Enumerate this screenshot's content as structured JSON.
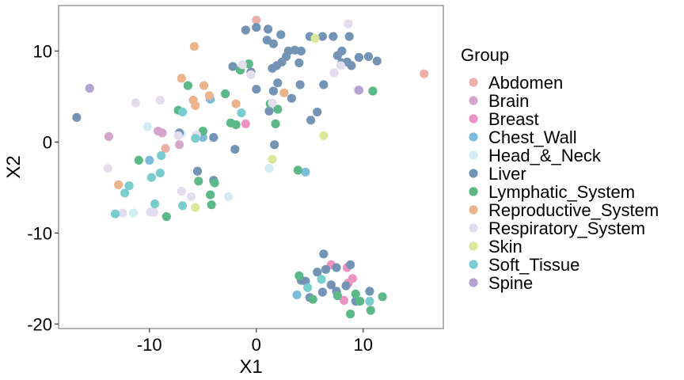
{
  "chart_data": {
    "type": "scatter",
    "xlabel": "X1",
    "ylabel": "X2",
    "xlim": [
      -18.5,
      17.5
    ],
    "ylim": [
      -20.5,
      15.0
    ],
    "x_ticks": [
      -10,
      0,
      10
    ],
    "y_ticks": [
      -20,
      -10,
      0,
      10
    ],
    "grid": false,
    "legend": {
      "title": "Group",
      "position": "right"
    },
    "series": [
      {
        "name": "Abdomen",
        "color": "#EBB0A6",
        "points": [
          [
            0.0,
            13.4
          ],
          [
            15.7,
            7.5
          ],
          [
            -8.5,
            -0.7
          ]
        ]
      },
      {
        "name": "Brain",
        "color": "#D4A6CC",
        "points": [
          [
            -13.8,
            0.6
          ],
          [
            -9.2,
            1.2
          ],
          [
            -8.8,
            1.0
          ],
          [
            -7.2,
            -0.3
          ]
        ]
      },
      {
        "name": "Breast",
        "color": "#EE92C3",
        "points": [
          [
            -1.0,
            2.0
          ],
          [
            7.0,
            -13.5
          ],
          [
            8.5,
            -13.8
          ],
          [
            9.0,
            -15.0
          ],
          [
            8.2,
            -17.4
          ],
          [
            8.6,
            -15.5
          ]
        ]
      },
      {
        "name": "Chest_Wall",
        "color": "#7BBCDB",
        "points": [
          [
            -4.3,
            4.7
          ],
          [
            -5.0,
            0.5
          ],
          [
            4.6,
            -3.3
          ],
          [
            3.8,
            -16.8
          ],
          [
            -10.0,
            -2.0
          ]
        ]
      },
      {
        "name": "Head_&_Neck",
        "color": "#D2ECF6",
        "points": [
          [
            -10.2,
            1.7
          ],
          [
            -7.0,
            0.9
          ],
          [
            -2.6,
            -6.0
          ],
          [
            1.2,
            -2.9
          ],
          [
            -11.5,
            -7.8
          ]
        ]
      },
      {
        "name": "Liver",
        "color": "#7394B4",
        "points": [
          [
            -16.8,
            2.7
          ],
          [
            -1.0,
            12.3
          ],
          [
            0.0,
            12.6
          ],
          [
            1.1,
            12.4
          ],
          [
            2.3,
            11.8
          ],
          [
            1.0,
            11.2
          ],
          [
            1.6,
            10.8
          ],
          [
            3.0,
            10.0
          ],
          [
            3.6,
            10.1
          ],
          [
            2.8,
            9.4
          ],
          [
            2.4,
            8.8
          ],
          [
            1.9,
            8.4
          ],
          [
            1.5,
            8.1
          ],
          [
            4.2,
            10.0
          ],
          [
            4.0,
            8.7
          ],
          [
            5.0,
            11.6
          ],
          [
            6.2,
            11.6
          ],
          [
            7.2,
            11.6
          ],
          [
            8.7,
            11.6
          ],
          [
            8.0,
            10.0
          ],
          [
            7.6,
            9.5
          ],
          [
            8.0,
            8.7
          ],
          [
            8.5,
            8.8
          ],
          [
            8.9,
            8.4
          ],
          [
            9.6,
            9.3
          ],
          [
            10.5,
            9.4
          ],
          [
            11.3,
            8.9
          ],
          [
            4.1,
            6.3
          ],
          [
            6.3,
            6.3
          ],
          [
            2.0,
            6.5
          ],
          [
            0.0,
            5.8
          ],
          [
            1.6,
            5.6
          ],
          [
            3.3,
            4.8
          ],
          [
            5.7,
            3.3
          ],
          [
            5.1,
            2.4
          ],
          [
            1.2,
            3.4
          ],
          [
            1.7,
            -0.3
          ],
          [
            -0.5,
            7.7
          ],
          [
            -2.2,
            8.3
          ],
          [
            -7.2,
            1.0
          ],
          [
            -4.0,
            0.5
          ],
          [
            -2.0,
            -0.8
          ],
          [
            -5.5,
            -3.2
          ],
          [
            -4.0,
            -4.2
          ],
          [
            6.3,
            -12.3
          ],
          [
            7.5,
            -13.8
          ],
          [
            6.5,
            -14.0
          ],
          [
            8.8,
            -13.5
          ],
          [
            5.7,
            -14.3
          ],
          [
            4.2,
            -15.2
          ],
          [
            4.6,
            -15.3
          ],
          [
            7.0,
            -15.7
          ],
          [
            6.2,
            -16.5
          ],
          [
            7.5,
            -16.4
          ],
          [
            8.4,
            -15.8
          ],
          [
            5.0,
            -17.1
          ],
          [
            9.3,
            -17.5
          ],
          [
            10.6,
            -16.4
          ]
        ]
      },
      {
        "name": "Lymphatic_System",
        "color": "#5CB987",
        "points": [
          [
            -0.7,
            8.6
          ],
          [
            -1.5,
            7.9
          ],
          [
            -6.4,
            6.2
          ],
          [
            -2.9,
            5.3
          ],
          [
            1.3,
            4.2
          ],
          [
            2.0,
            3.6
          ],
          [
            -7.3,
            3.5
          ],
          [
            -5.0,
            1.2
          ],
          [
            -2.4,
            2.1
          ],
          [
            -1.9,
            1.9
          ],
          [
            1.8,
            2.0
          ],
          [
            -11.0,
            -2.0
          ],
          [
            3.9,
            -3.1
          ],
          [
            -5.4,
            -4.3
          ],
          [
            -3.9,
            -4.5
          ],
          [
            -4.3,
            -5.8
          ],
          [
            -4.2,
            -6.9
          ],
          [
            -8.4,
            -8.2
          ],
          [
            4.0,
            -14.7
          ],
          [
            5.3,
            -17.3
          ],
          [
            7.6,
            -16.9
          ],
          [
            9.3,
            -16.7
          ],
          [
            9.7,
            -17.5
          ],
          [
            10.7,
            -18.5
          ],
          [
            8.8,
            -18.9
          ],
          [
            11.8,
            -17.0
          ],
          [
            10.9,
            5.6
          ]
        ]
      },
      {
        "name": "Reproductive_System",
        "color": "#EBB48C",
        "points": [
          [
            -5.8,
            10.5
          ],
          [
            -7.0,
            7.0
          ],
          [
            -4.9,
            6.2
          ],
          [
            -4.4,
            5.1
          ],
          [
            -5.9,
            4.6
          ],
          [
            -5.7,
            4.0
          ],
          [
            -1.9,
            4.2
          ],
          [
            2.6,
            5.4
          ],
          [
            -12.9,
            -4.7
          ]
        ]
      },
      {
        "name": "Respiratory_System",
        "color": "#E3DDEE",
        "points": [
          [
            8.6,
            13.0
          ],
          [
            -1.3,
            8.5
          ],
          [
            -0.5,
            7.4
          ],
          [
            7.3,
            7.6
          ],
          [
            -11.3,
            4.3
          ],
          [
            -9.0,
            4.6
          ],
          [
            1.5,
            4.3
          ],
          [
            -5.6,
            0.8
          ],
          [
            -7.3,
            0.7
          ],
          [
            -13.9,
            -2.9
          ],
          [
            -7.0,
            -5.4
          ],
          [
            -6.1,
            -6.0
          ],
          [
            -9.9,
            -7.7
          ],
          [
            -9.6,
            -7.7
          ],
          [
            -12.5,
            -7.8
          ],
          [
            9.5,
            5.7
          ],
          [
            7.9,
            8.4
          ]
        ]
      },
      {
        "name": "Skin",
        "color": "#DDE79A",
        "points": [
          [
            5.5,
            11.4
          ],
          [
            6.3,
            0.7
          ],
          [
            1.5,
            -1.9
          ],
          [
            -5.7,
            -7.2
          ]
        ]
      },
      {
        "name": "Soft_Tissue",
        "color": "#7ACDCF",
        "points": [
          [
            -1.4,
            3.2
          ],
          [
            -6.9,
            3.3
          ],
          [
            -5.7,
            0.4
          ],
          [
            -8.9,
            -1.5
          ],
          [
            -11.9,
            -4.8
          ],
          [
            -12.3,
            -5.6
          ],
          [
            -9.8,
            -3.9
          ],
          [
            -9.0,
            -3.4
          ],
          [
            -9.5,
            -6.8
          ],
          [
            -13.2,
            -7.9
          ],
          [
            -6.9,
            -7.0
          ],
          [
            6.1,
            -15.1
          ],
          [
            4.8,
            -16.0
          ],
          [
            10.6,
            -17.5
          ]
        ]
      },
      {
        "name": "Spine",
        "color": "#B4A3CE",
        "points": [
          [
            -15.6,
            5.9
          ],
          [
            9.6,
            5.7
          ]
        ]
      }
    ]
  }
}
